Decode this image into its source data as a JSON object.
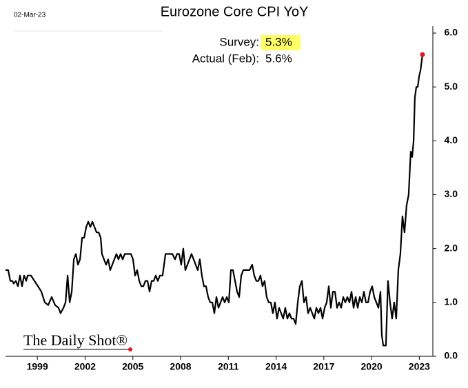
{
  "chart_data": {
    "type": "line",
    "title": "Eurozone Core CPI YoY",
    "date_label": "02-Mar-23",
    "annotations": {
      "survey_label": "Survey:",
      "survey_value": "5.3%",
      "actual_label": "Actual (Feb):",
      "actual_value": "5.6%"
    },
    "source": "The Daily Shot®",
    "xlim": [
      1997.0,
      2023.85
    ],
    "xticks": [
      1999,
      2002,
      2005,
      2008,
      2011,
      2014,
      2017,
      2020,
      2023
    ],
    "ylim": [
      0,
      6
    ],
    "yticks": [
      {
        "value": 0,
        "label": "0.0"
      },
      {
        "value": 1,
        "label": "1.0"
      },
      {
        "value": 2,
        "label": "2.0"
      },
      {
        "value": 3,
        "label": "3.0"
      },
      {
        "value": 4,
        "label": "4.0"
      },
      {
        "value": 5,
        "label": "5.0"
      },
      {
        "value": 6,
        "label": "6.0"
      }
    ],
    "marker_color": "#e8141b",
    "series": [
      {
        "color": "#000000",
        "x": [
          1997.0,
          1997.17,
          1997.3,
          1997.43,
          1997.52,
          1997.65,
          1997.78,
          1997.91,
          1998.04,
          1998.17,
          1998.3,
          1998.39,
          1998.6,
          1998.82,
          1999.04,
          1999.25,
          1999.47,
          1999.68,
          1999.9,
          2000.12,
          2000.33,
          2000.46,
          2000.64,
          2000.77,
          2000.9,
          2001.03,
          2001.16,
          2001.29,
          2001.42,
          2001.55,
          2001.68,
          2001.81,
          2001.94,
          2002.07,
          2002.2,
          2002.33,
          2002.46,
          2002.59,
          2002.72,
          2002.85,
          2002.98,
          2003.06,
          2003.19,
          2003.32,
          2003.45,
          2003.58,
          2003.71,
          2003.84,
          2003.97,
          2004.1,
          2004.23,
          2004.36,
          2004.49,
          2004.62,
          2004.88,
          2005.01,
          2005.14,
          2005.27,
          2005.4,
          2005.53,
          2005.66,
          2005.79,
          2005.92,
          2006.05,
          2006.18,
          2006.31,
          2006.44,
          2006.57,
          2006.7,
          2006.87,
          2007.05,
          2007.26,
          2007.48,
          2007.65,
          2007.78,
          2007.91,
          2008.04,
          2008.17,
          2008.3,
          2008.43,
          2008.56,
          2008.69,
          2008.82,
          2008.95,
          2009.08,
          2009.21,
          2009.34,
          2009.47,
          2009.6,
          2009.73,
          2009.86,
          2009.99,
          2010.12,
          2010.25,
          2010.38,
          2010.51,
          2010.64,
          2010.77,
          2010.9,
          2011.03,
          2011.16,
          2011.29,
          2011.42,
          2011.55,
          2011.68,
          2011.81,
          2011.94,
          2012.16,
          2012.33,
          2012.5,
          2012.63,
          2012.76,
          2012.89,
          2013.02,
          2013.15,
          2013.28,
          2013.41,
          2013.54,
          2013.67,
          2013.8,
          2013.93,
          2014.06,
          2014.19,
          2014.32,
          2014.45,
          2014.58,
          2014.71,
          2014.84,
          2014.97,
          2015.1,
          2015.23,
          2015.36,
          2015.49,
          2015.62,
          2015.75,
          2015.88,
          2016.01,
          2016.14,
          2016.27,
          2016.4,
          2016.53,
          2016.66,
          2016.79,
          2016.92,
          2017.05,
          2017.18,
          2017.31,
          2017.44,
          2017.57,
          2017.7,
          2017.83,
          2017.96,
          2018.09,
          2018.22,
          2018.35,
          2018.48,
          2018.61,
          2018.74,
          2018.87,
          2019.0,
          2019.13,
          2019.26,
          2019.39,
          2019.52,
          2019.65,
          2019.78,
          2019.91,
          2020.04,
          2020.17,
          2020.3,
          2020.43,
          2020.56,
          2020.64,
          2020.73,
          2020.9,
          2021.03,
          2021.16,
          2021.29,
          2021.42,
          2021.55,
          2021.68,
          2021.81,
          2021.94,
          2022.07,
          2022.2,
          2022.33,
          2022.46,
          2022.55,
          2022.64,
          2022.72,
          2022.81,
          2022.9,
          2022.99,
          2023.07,
          2023.2
        ],
        "values": [
          1.6,
          1.6,
          1.4,
          1.4,
          1.35,
          1.4,
          1.3,
          1.5,
          1.3,
          1.5,
          1.4,
          1.5,
          1.5,
          1.4,
          1.3,
          1.2,
          1.0,
          0.95,
          1.1,
          0.95,
          0.9,
          0.8,
          0.9,
          1.0,
          1.5,
          1.0,
          1.2,
          1.8,
          1.9,
          1.7,
          1.8,
          2.2,
          2.2,
          2.4,
          2.5,
          2.4,
          2.5,
          2.4,
          2.3,
          2.3,
          2.2,
          1.9,
          1.8,
          1.7,
          1.8,
          1.6,
          1.7,
          1.8,
          1.9,
          1.8,
          1.9,
          1.8,
          1.9,
          1.9,
          1.9,
          1.8,
          1.5,
          1.6,
          1.4,
          1.3,
          1.3,
          1.4,
          1.4,
          1.2,
          1.4,
          1.4,
          1.5,
          1.4,
          1.5,
          1.5,
          1.9,
          1.9,
          1.9,
          1.8,
          1.9,
          1.9,
          1.7,
          2.0,
          1.6,
          1.7,
          1.8,
          1.9,
          1.8,
          1.7,
          1.6,
          1.8,
          1.5,
          1.3,
          1.3,
          1.1,
          1.0,
          1.0,
          0.8,
          1.1,
          0.9,
          1.0,
          1.1,
          1.0,
          1.1,
          1.0,
          1.6,
          1.6,
          1.4,
          1.2,
          1.1,
          1.5,
          1.6,
          1.6,
          1.6,
          1.7,
          1.5,
          1.4,
          1.4,
          1.5,
          1.3,
          1.4,
          1.1,
          1.0,
          1.0,
          0.8,
          1.0,
          0.7,
          0.9,
          0.8,
          0.7,
          0.9,
          0.7,
          0.8,
          0.7,
          0.7,
          0.6,
          1.0,
          1.3,
          1.4,
          1.0,
          1.1,
          0.8,
          0.9,
          0.8,
          0.7,
          0.9,
          0.8,
          0.9,
          0.7,
          0.9,
          1.0,
          1.3,
          0.9,
          1.2,
          1.2,
          0.9,
          1.0,
          0.9,
          1.1,
          1.0,
          1.1,
          1.0,
          1.2,
          0.9,
          1.1,
          0.9,
          1.1,
          1.0,
          1.2,
          1.0,
          1.0,
          1.2,
          1.3,
          1.1,
          1.0,
          0.9,
          1.2,
          0.4,
          0.2,
          0.2,
          1.4,
          1.0,
          0.7,
          1.0,
          0.7,
          1.6,
          1.9,
          2.6,
          2.3,
          2.8,
          3.0,
          3.8,
          3.7,
          4.0,
          4.8,
          5.0,
          5.0,
          5.2,
          5.3,
          5.6
        ]
      }
    ]
  }
}
